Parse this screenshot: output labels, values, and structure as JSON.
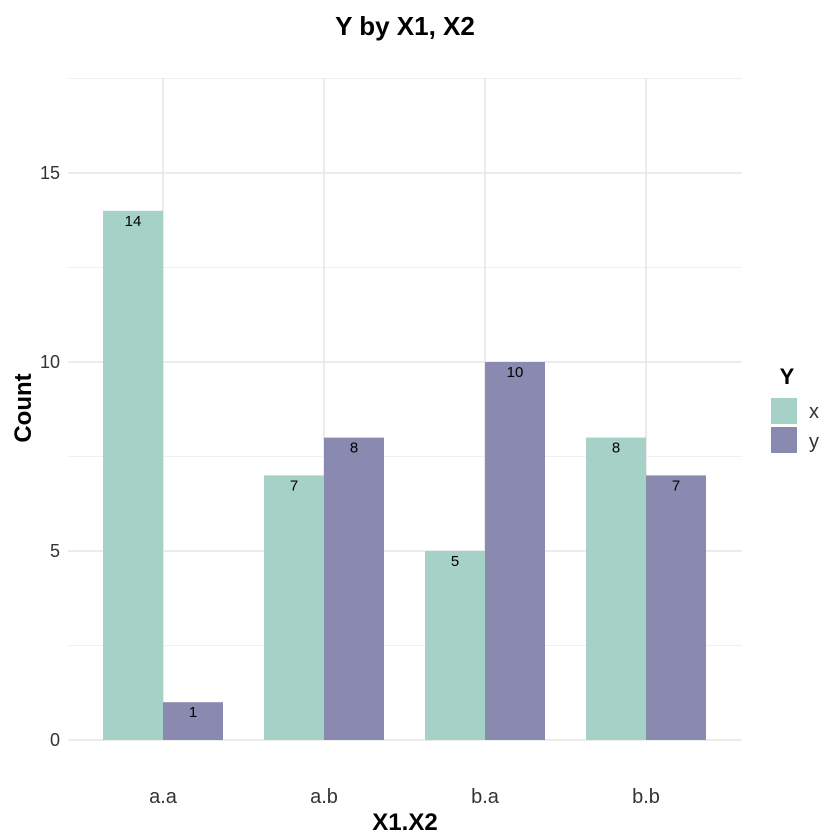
{
  "chart_data": {
    "type": "bar",
    "title": "Y by X1, X2",
    "xlabel": "X1.X2",
    "ylabel": "Count",
    "categories": [
      "a.a",
      "a.b",
      "b.a",
      "b.b"
    ],
    "series": [
      {
        "name": "x",
        "values": [
          14,
          7,
          5,
          8
        ],
        "color": "#a6d1c6"
      },
      {
        "name": "y",
        "values": [
          1,
          8,
          10,
          7
        ],
        "color": "#8a89b0"
      }
    ],
    "ylim": [
      0,
      17.5
    ],
    "yticks": [
      0,
      5,
      10,
      15
    ],
    "grid": true,
    "legend": {
      "title": "Y",
      "position": "right"
    }
  }
}
